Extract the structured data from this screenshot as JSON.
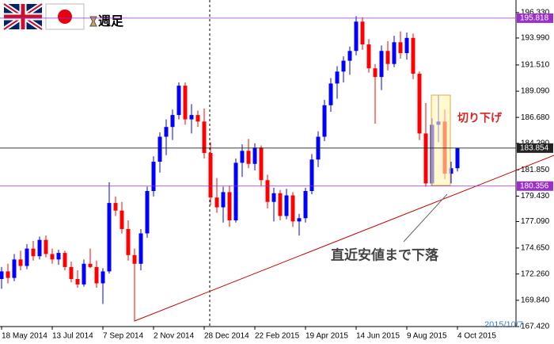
{
  "chart_data": {
    "type": "candlestick",
    "title": "週足",
    "categories": [
      "18 May 2014",
      null,
      null,
      null,
      null,
      null,
      null,
      null,
      "13 Jul 2014",
      null,
      null,
      null,
      null,
      null,
      null,
      null,
      "7 Sep 2014",
      null,
      null,
      null,
      null,
      null,
      null,
      null,
      "2 Nov 2014",
      null,
      null,
      null,
      null,
      null,
      null,
      null,
      "28 Dec 2014",
      null,
      null,
      null,
      null,
      null,
      null,
      null,
      "22 Feb 2015",
      null,
      null,
      null,
      null,
      null,
      null,
      null,
      "19 Apr 2015",
      null,
      null,
      null,
      null,
      null,
      null,
      null,
      "14 Jun 2015",
      null,
      null,
      null,
      null,
      null,
      null,
      null,
      "9 Aug 2015",
      null,
      null,
      null,
      null,
      null,
      null,
      null,
      "4 Oct 2015"
    ],
    "open": [
      171.8,
      172.5,
      171.9,
      173.6,
      173.0,
      174.6,
      173.9,
      175.4,
      174.1,
      173.6,
      174.2,
      172.9,
      171.8,
      171.3,
      173.2,
      172.9,
      171.4,
      172.5,
      178.8,
      178.1,
      176.4,
      174.0,
      173.2,
      176.0,
      179.9,
      182.6,
      184.9,
      185.8,
      186.9,
      189.6,
      186.5,
      186.9,
      186.3,
      183.4,
      179.3,
      178.4,
      179.8,
      177.2,
      182.5,
      183.6,
      182.4,
      183.9,
      180.9,
      178.9,
      179.7,
      177.6,
      179.5,
      177.1,
      177.4,
      179.9,
      182.8,
      184.9,
      187.8,
      189.8,
      190.9,
      191.9,
      192.8,
      195.5,
      193.4,
      191.2,
      190.4,
      192.8,
      191.6,
      193.6,
      192.6,
      194.0,
      190.7,
      185.2,
      180.6,
      186.0,
      186.3,
      181.5,
      182.0
    ],
    "high": [
      172.9,
      173.2,
      174.1,
      174.4,
      175.0,
      175.3,
      175.7,
      175.8,
      174.6,
      174.5,
      174.4,
      173.4,
      172.6,
      173.6,
      174.6,
      173.5,
      172.8,
      180.7,
      179.4,
      178.9,
      177.2,
      174.6,
      176.4,
      180.3,
      183.1,
      185.3,
      186.5,
      187.4,
      189.9,
      189.9,
      187.9,
      187.3,
      187.5,
      184.4,
      181.1,
      180.3,
      180.4,
      182.9,
      184.2,
      184.7,
      184.3,
      184.1,
      181.4,
      180.2,
      180.0,
      180.1,
      179.8,
      177.8,
      180.2,
      183.3,
      185.4,
      188.3,
      190.3,
      191.4,
      192.3,
      193.2,
      196.0,
      195.9,
      193.9,
      191.6,
      193.3,
      193.7,
      194.2,
      194.6,
      194.5,
      194.4,
      190.9,
      188.0,
      186.6,
      188.7,
      187.4,
      182.6,
      183.9
    ],
    "low": [
      170.9,
      171.4,
      171.6,
      172.6,
      172.7,
      173.5,
      173.6,
      173.8,
      173.2,
      173.1,
      172.6,
      171.5,
      171.0,
      171.1,
      172.8,
      171.0,
      169.5,
      172.3,
      177.6,
      176.0,
      173.5,
      167.9,
      172.6,
      175.6,
      179.4,
      181.6,
      183.2,
      184.6,
      186.5,
      186.0,
      185.2,
      185.8,
      182.9,
      178.6,
      177.9,
      177.0,
      176.6,
      177.0,
      181.2,
      182.0,
      181.8,
      180.4,
      178.3,
      177.1,
      177.2,
      177.3,
      176.6,
      175.8,
      177.0,
      179.6,
      182.1,
      184.5,
      187.2,
      188.4,
      189.9,
      190.6,
      192.4,
      192.9,
      190.8,
      186.1,
      189.2,
      191.0,
      191.3,
      192.1,
      192.0,
      190.2,
      184.6,
      180.3,
      180.4,
      184.4,
      181.0,
      180.6,
      181.7
    ],
    "close": [
      172.5,
      171.9,
      173.6,
      173.0,
      174.6,
      173.9,
      175.4,
      174.1,
      173.6,
      174.2,
      172.9,
      171.8,
      171.3,
      173.2,
      172.9,
      171.4,
      172.5,
      178.8,
      178.1,
      176.4,
      174.0,
      173.2,
      176.0,
      179.9,
      182.6,
      184.9,
      185.8,
      186.9,
      189.6,
      186.5,
      186.9,
      186.3,
      183.4,
      179.3,
      178.4,
      179.8,
      177.2,
      182.5,
      183.6,
      182.4,
      183.9,
      180.9,
      178.9,
      179.7,
      177.6,
      179.5,
      177.1,
      177.4,
      179.9,
      182.8,
      184.9,
      187.8,
      189.8,
      190.9,
      191.9,
      192.8,
      195.5,
      193.4,
      191.2,
      190.4,
      192.8,
      191.6,
      193.6,
      192.6,
      194.0,
      190.7,
      185.2,
      180.6,
      186.0,
      186.3,
      181.5,
      182.0,
      183.854
    ],
    "up_color": "#0000ff",
    "down_color": "#ff0000",
    "ylim": [
      167.42,
      197.49
    ],
    "yticks": [
      {
        "value": 196.33,
        "label": "196.330"
      },
      {
        "value": 193.99,
        "label": "193.990"
      },
      {
        "value": 191.51,
        "label": "191.510"
      },
      {
        "value": 189.09,
        "label": "189.090"
      },
      {
        "value": 186.68,
        "label": "186.680"
      },
      {
        "value": 184.29,
        "label": "184.290"
      },
      {
        "value": 181.85,
        "label": "181.850"
      },
      {
        "value": 179.43,
        "label": "179.430"
      },
      {
        "value": 177.09,
        "label": "177.090"
      },
      {
        "value": 174.65,
        "label": "174.650"
      },
      {
        "value": 172.26,
        "label": "172.260"
      },
      {
        "value": 169.84,
        "label": "169.840"
      },
      {
        "value": 167.42,
        "label": "167.420"
      }
    ],
    "price_lines": [
      {
        "value": 195.818,
        "color": "#9b30c8"
      },
      {
        "value": 183.854,
        "color": "#222222"
      },
      {
        "value": 180.356,
        "color": "#9b30c8"
      }
    ],
    "annotations": [
      "切り下げ",
      "直近安値まで下落"
    ],
    "date": "2015/10/7"
  }
}
